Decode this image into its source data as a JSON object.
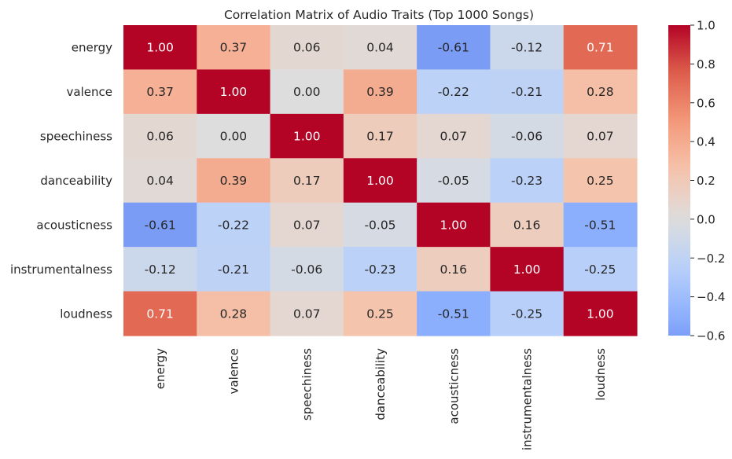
{
  "chart_data": {
    "type": "heatmap",
    "title": "Correlation Matrix of Audio Traits (Top 1000 Songs)",
    "xlabel": "",
    "ylabel": "",
    "row_labels": [
      "energy",
      "valence",
      "speechiness",
      "danceability",
      "acousticness",
      "instrumentalness",
      "loudness"
    ],
    "col_labels": [
      "energy",
      "valence",
      "speechiness",
      "danceability",
      "acousticness",
      "instrumentalness",
      "loudness"
    ],
    "values": [
      [
        1.0,
        0.37,
        0.06,
        0.04,
        -0.61,
        -0.12,
        0.71
      ],
      [
        0.37,
        1.0,
        0.0,
        0.39,
        -0.22,
        -0.21,
        0.28
      ],
      [
        0.06,
        0.0,
        1.0,
        0.17,
        0.07,
        -0.06,
        0.07
      ],
      [
        0.04,
        0.39,
        0.17,
        1.0,
        -0.05,
        -0.23,
        0.25
      ],
      [
        -0.61,
        -0.22,
        0.07,
        -0.05,
        1.0,
        0.16,
        -0.51
      ],
      [
        -0.12,
        -0.21,
        -0.06,
        -0.23,
        0.16,
        1.0,
        -0.25
      ],
      [
        0.71,
        0.28,
        0.07,
        0.25,
        -0.51,
        -0.25,
        1.0
      ]
    ],
    "value_format": "0.00",
    "colormap": "coolwarm",
    "color_range": [
      -0.6,
      1.0
    ],
    "colorbar_ticks": [
      1.0,
      0.8,
      0.6,
      0.4,
      0.2,
      0.0,
      -0.2,
      -0.4,
      -0.6
    ],
    "colorbar_tick_labels": [
      "1.0",
      "0.8",
      "0.6",
      "0.4",
      "0.2",
      "0.0",
      "−0.2",
      "−0.4",
      "−0.6"
    ],
    "grid": false,
    "legend": "colorbar-right"
  }
}
